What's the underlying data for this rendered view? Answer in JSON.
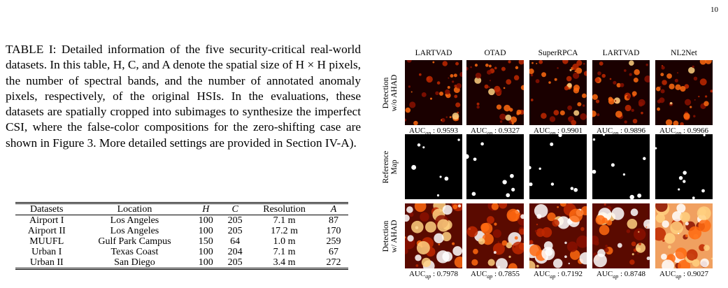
{
  "page_number": "10",
  "caption": {
    "label": "TABLE I:",
    "text": "Detailed information of the five security-critical real-world datasets. In this table, H, C, and A denote the spatial size of H × H pixels, the number of spectral bands, and the number of annotated anomaly pixels, respectively, of the original HSIs. In the evaluations, these datasets are spatially cropped into subimages to synthesize the imperfect CSI, where the false-color compositions for the zero-shifting case are shown in Figure 3. More detailed settings are provided in Section IV-A)."
  },
  "table": {
    "header": [
      "Datasets",
      "Location",
      "H",
      "C",
      "Resolution",
      "A"
    ],
    "rows": [
      [
        "Airport I",
        "Los Angeles",
        "100",
        "205",
        "7.1 m",
        "87"
      ],
      [
        "Airport II",
        "Los Angeles",
        "100",
        "205",
        "17.2 m",
        "170"
      ],
      [
        "MUUFL",
        "Gulf Park Campus",
        "150",
        "64",
        "1.0 m",
        "259"
      ],
      [
        "Urban I",
        "Texas Coast",
        "100",
        "204",
        "7.1 m",
        "67"
      ],
      [
        "Urban II",
        "San Diego",
        "100",
        "205",
        "3.4 m",
        "272"
      ]
    ]
  },
  "figure": {
    "columns": [
      "LARTVAD",
      "OTAD",
      "SuperRPCA",
      "LARTVAD",
      "NL2Net"
    ],
    "score_name": "AUC",
    "score_sub": "ap",
    "score_sep": " : ",
    "rows": [
      {
        "label": [
          "Detection",
          "w/o AHAD"
        ],
        "scores": [
          "0.9593",
          "0.9327",
          "0.9901",
          "0.9896",
          "0.9966"
        ]
      },
      {
        "label": [
          "Reference",
          "Map"
        ]
      },
      {
        "label": [
          "Detection",
          "w/ AHAD"
        ],
        "scores": [
          "0.7978",
          "0.7855",
          "0.7192",
          "0.8748",
          "0.9027"
        ]
      }
    ]
  }
}
